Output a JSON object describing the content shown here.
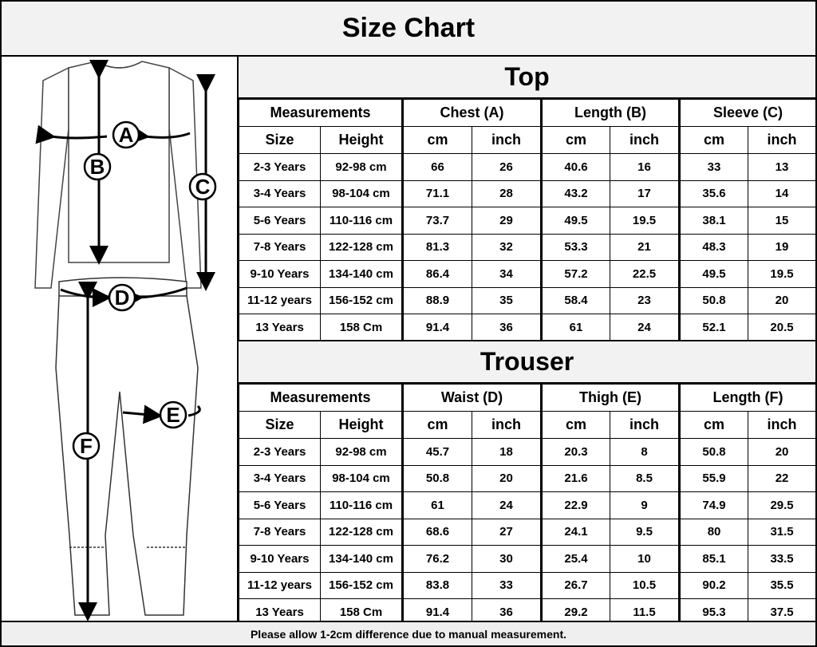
{
  "title": "Size Chart",
  "illustration": {
    "labels": [
      "A",
      "B",
      "C",
      "D",
      "E",
      "F"
    ]
  },
  "top": {
    "title": "Top",
    "groups": [
      "Measurements",
      "Chest (A)",
      "Length (B)",
      "Sleeve (C)"
    ],
    "subheaders": [
      "Size",
      "Height",
      "cm",
      "inch",
      "cm",
      "inch",
      "cm",
      "inch"
    ],
    "rows": [
      [
        "2-3 Years",
        "92-98 cm",
        "66",
        "26",
        "40.6",
        "16",
        "33",
        "13"
      ],
      [
        "3-4 Years",
        "98-104 cm",
        "71.1",
        "28",
        "43.2",
        "17",
        "35.6",
        "14"
      ],
      [
        "5-6 Years",
        "110-116 cm",
        "73.7",
        "29",
        "49.5",
        "19.5",
        "38.1",
        "15"
      ],
      [
        "7-8 Years",
        "122-128 cm",
        "81.3",
        "32",
        "53.3",
        "21",
        "48.3",
        "19"
      ],
      [
        "9-10 Years",
        "134-140 cm",
        "86.4",
        "34",
        "57.2",
        "22.5",
        "49.5",
        "19.5"
      ],
      [
        "11-12 years",
        "156-152 cm",
        "88.9",
        "35",
        "58.4",
        "23",
        "50.8",
        "20"
      ],
      [
        "13 Years",
        "158 Cm",
        "91.4",
        "36",
        "61",
        "24",
        "52.1",
        "20.5"
      ]
    ]
  },
  "trouser": {
    "title": "Trouser",
    "groups": [
      "Measurements",
      "Waist (D)",
      "Thigh (E)",
      "Length (F)"
    ],
    "subheaders": [
      "Size",
      "Height",
      "cm",
      "inch",
      "cm",
      "inch",
      "cm",
      "inch"
    ],
    "rows": [
      [
        "2-3 Years",
        "92-98 cm",
        "45.7",
        "18",
        "20.3",
        "8",
        "50.8",
        "20"
      ],
      [
        "3-4 Years",
        "98-104 cm",
        "50.8",
        "20",
        "21.6",
        "8.5",
        "55.9",
        "22"
      ],
      [
        "5-6 Years",
        "110-116 cm",
        "61",
        "24",
        "22.9",
        "9",
        "74.9",
        "29.5"
      ],
      [
        "7-8 Years",
        "122-128 cm",
        "68.6",
        "27",
        "24.1",
        "9.5",
        "80",
        "31.5"
      ],
      [
        "9-10 Years",
        "134-140 cm",
        "76.2",
        "30",
        "25.4",
        "10",
        "85.1",
        "33.5"
      ],
      [
        "11-12 years",
        "156-152 cm",
        "83.8",
        "33",
        "26.7",
        "10.5",
        "90.2",
        "35.5"
      ],
      [
        "13 Years",
        "158 Cm",
        "91.4",
        "36",
        "29.2",
        "11.5",
        "95.3",
        "37.5"
      ]
    ]
  },
  "footer": "Please allow 1-2cm difference due to manual measurement."
}
